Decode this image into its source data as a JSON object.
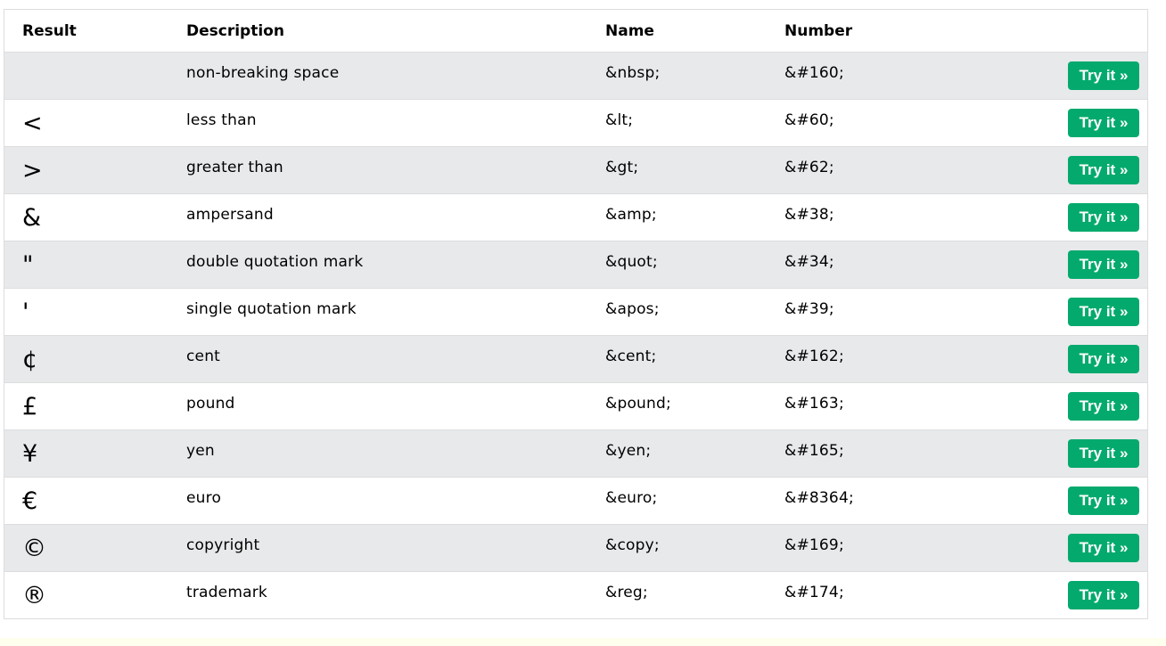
{
  "table": {
    "headers": {
      "result": "Result",
      "description": "Description",
      "name": "Name",
      "number": "Number"
    },
    "try_label": "Try it »",
    "rows": [
      {
        "result": "",
        "description": "non-breaking space",
        "name": "&nbsp;",
        "number": "&#160;"
      },
      {
        "result": "<",
        "description": "less than",
        "name": "&lt;",
        "number": "&#60;"
      },
      {
        "result": ">",
        "description": "greater than",
        "name": "&gt;",
        "number": "&#62;"
      },
      {
        "result": "&",
        "description": "ampersand",
        "name": "&amp;",
        "number": "&#38;"
      },
      {
        "result": "\"",
        "description": "double quotation mark",
        "name": "&quot;",
        "number": "&#34;"
      },
      {
        "result": "'",
        "description": "single quotation mark",
        "name": "&apos;",
        "number": "&#39;"
      },
      {
        "result": "¢",
        "description": "cent",
        "name": "&cent;",
        "number": "&#162;"
      },
      {
        "result": "£",
        "description": "pound",
        "name": "&pound;",
        "number": "&#163;"
      },
      {
        "result": "¥",
        "description": "yen",
        "name": "&yen;",
        "number": "&#165;"
      },
      {
        "result": "€",
        "description": "euro",
        "name": "&euro;",
        "number": "&#8364;"
      },
      {
        "result": "©",
        "description": "copyright",
        "name": "&copy;",
        "number": "&#169;"
      },
      {
        "result": "®",
        "description": "trademark",
        "name": "&reg;",
        "number": "&#174;"
      }
    ]
  },
  "colors": {
    "button": "#04aa6d",
    "shaded_row": "#e7e9eb",
    "border": "#dddddd",
    "bottom_strip": "#ffffee"
  }
}
